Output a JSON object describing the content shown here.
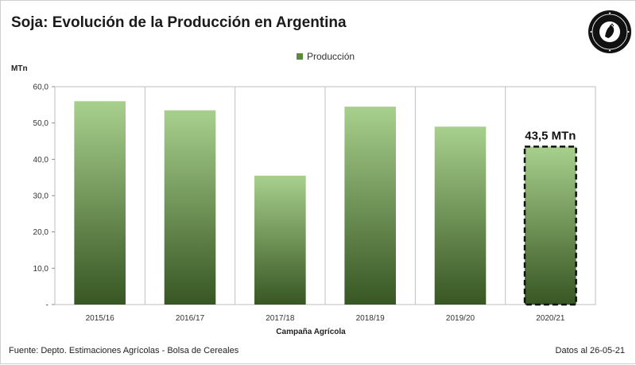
{
  "header": {
    "title": "Soja: Evolución de la Producción en Argentina"
  },
  "footer": {
    "source": "Fuente: Depto. Estimaciones Agrícolas - Bolsa de Cereales",
    "date": "Datos al 26-05-21"
  },
  "chart_data": {
    "type": "bar",
    "title": "Soja: Evolución de la Producción en Argentina",
    "xlabel": "Campaña Agrícola",
    "ylabel": "MTn",
    "categories": [
      "2015/16",
      "2016/17",
      "2017/18",
      "2018/19",
      "2019/20",
      "2020/21"
    ],
    "series": [
      {
        "name": "Producción",
        "values": [
          56.0,
          53.5,
          35.5,
          54.5,
          49.0,
          43.5
        ]
      }
    ],
    "highlight": {
      "index": 5,
      "label": "43,5 MTn",
      "style": "dashed-outline"
    },
    "ylim": [
      0,
      60
    ],
    "yticks": [
      "-",
      "10,0",
      "20,0",
      "30,0",
      "40,0",
      "50,0",
      "60,0"
    ],
    "grid": "vertical-category-separators",
    "legend": "top-center",
    "colors": {
      "bar_top": "#a8d08d",
      "bar_bottom": "#375623",
      "legend": "#5a8a3c"
    }
  }
}
